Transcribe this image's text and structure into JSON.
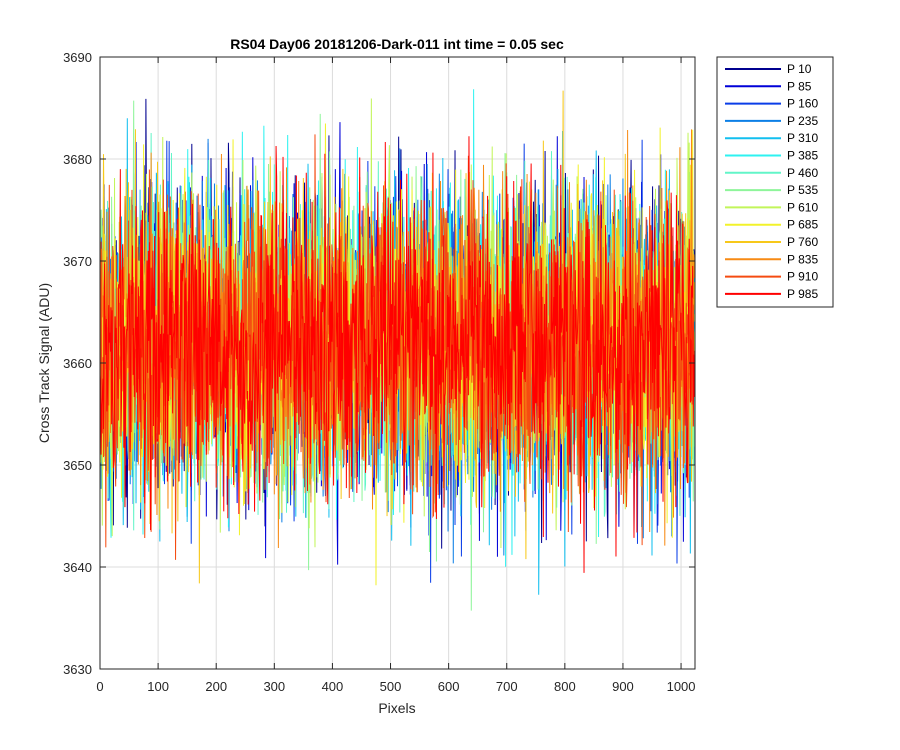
{
  "chart_data": {
    "type": "line",
    "title": "RS04 Day06 20181206-Dark-011 int time = 0.05 sec",
    "xlabel": "Pixels",
    "ylabel": "Cross Track Signal (ADU)",
    "xlim": [
      0,
      1024
    ],
    "ylim": [
      3630,
      3690
    ],
    "xticks": [
      0,
      100,
      200,
      300,
      400,
      500,
      600,
      700,
      800,
      900,
      1000
    ],
    "yticks": [
      3630,
      3640,
      3650,
      3660,
      3670,
      3680,
      3690
    ],
    "grid": true,
    "legend_position": "outside-top-right",
    "noise": {
      "mean": 3662,
      "min": 3633,
      "max": 3689,
      "n_points": 1024
    },
    "series": [
      {
        "name": "P 10",
        "color": "#00008f"
      },
      {
        "name": "P 85",
        "color": "#0000d8"
      },
      {
        "name": "P 160",
        "color": "#0a3ee8"
      },
      {
        "name": "P 235",
        "color": "#0c7fe6"
      },
      {
        "name": "P 310",
        "color": "#12bfef"
      },
      {
        "name": "P 385",
        "color": "#2ef2f0"
      },
      {
        "name": "P 460",
        "color": "#62f5c8"
      },
      {
        "name": "P 535",
        "color": "#8ef59a"
      },
      {
        "name": "P 610",
        "color": "#c2f55a"
      },
      {
        "name": "P 685",
        "color": "#f2f22a"
      },
      {
        "name": "P 760",
        "color": "#f7c81a"
      },
      {
        "name": "P 835",
        "color": "#f78a14"
      },
      {
        "name": "P 910",
        "color": "#f54b10"
      },
      {
        "name": "P 985",
        "color": "#ff0000"
      }
    ]
  }
}
